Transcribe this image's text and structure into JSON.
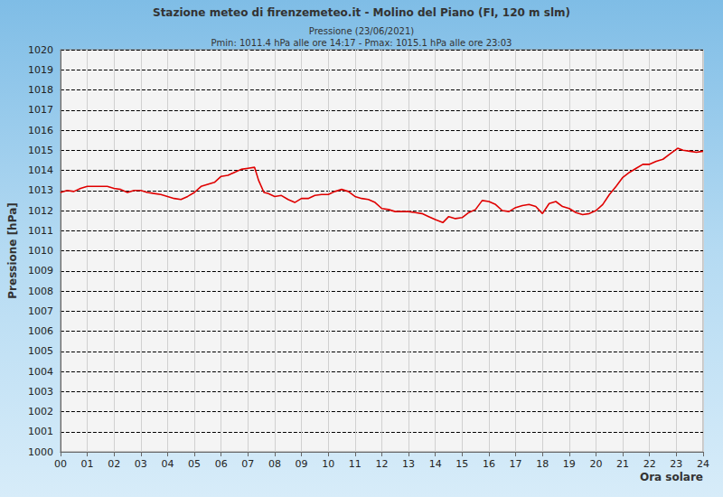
{
  "chart_data": {
    "type": "line",
    "title": "Stazione meteo di firenzemeteo.it - Molino del Piano (FI, 120 m slm)",
    "subtitle": "Pressione (23/06/2021)",
    "annotations": [
      "Pmin: 1011.4 hPa alle ore 14:17 - Pmax: 1015.1 hPa alle ore 23:03"
    ],
    "x_label": "Ora solare",
    "y_label": "Pressione [hPa]",
    "x": [
      0,
      0.25,
      0.5,
      0.75,
      1,
      1.25,
      1.5,
      1.75,
      2,
      2.25,
      2.5,
      2.75,
      3,
      3.25,
      3.5,
      3.75,
      4,
      4.25,
      4.5,
      4.75,
      5,
      5.25,
      5.5,
      5.75,
      6,
      6.25,
      6.5,
      6.75,
      7,
      7.25,
      7.4,
      7.6,
      7.75,
      8,
      8.25,
      8.5,
      8.75,
      9,
      9.25,
      9.5,
      9.75,
      10,
      10.25,
      10.5,
      10.75,
      11,
      11.25,
      11.5,
      11.75,
      12,
      12.25,
      12.5,
      12.75,
      13,
      13.25,
      13.5,
      13.75,
      14,
      14.28,
      14.5,
      14.75,
      15,
      15.25,
      15.5,
      15.75,
      16,
      16.25,
      16.5,
      16.75,
      17,
      17.25,
      17.5,
      17.75,
      18,
      18.25,
      18.5,
      18.75,
      19,
      19.25,
      19.5,
      19.75,
      20,
      20.25,
      20.5,
      20.75,
      21,
      21.25,
      21.5,
      21.75,
      22,
      22.25,
      22.5,
      22.75,
      23.05,
      23.25,
      23.5,
      23.75,
      24
    ],
    "values": [
      1012.9,
      1013.0,
      1012.95,
      1013.1,
      1013.2,
      1013.2,
      1013.2,
      1013.2,
      1013.1,
      1013.05,
      1012.9,
      1013.0,
      1013.0,
      1012.9,
      1012.85,
      1012.8,
      1012.7,
      1012.6,
      1012.55,
      1012.7,
      1012.9,
      1013.2,
      1013.3,
      1013.4,
      1013.7,
      1013.75,
      1013.9,
      1014.05,
      1014.1,
      1014.15,
      1013.5,
      1012.9,
      1012.85,
      1012.7,
      1012.75,
      1012.55,
      1012.4,
      1012.6,
      1012.6,
      1012.75,
      1012.8,
      1012.8,
      1012.95,
      1013.05,
      1012.95,
      1012.7,
      1012.6,
      1012.55,
      1012.4,
      1012.1,
      1012.05,
      1011.95,
      1011.95,
      1011.95,
      1011.9,
      1011.85,
      1011.7,
      1011.55,
      1011.4,
      1011.7,
      1011.6,
      1011.65,
      1011.9,
      1012.05,
      1012.5,
      1012.45,
      1012.3,
      1012.0,
      1011.95,
      1012.15,
      1012.25,
      1012.3,
      1012.2,
      1011.85,
      1012.35,
      1012.45,
      1012.2,
      1012.1,
      1011.9,
      1011.8,
      1011.85,
      1012.0,
      1012.3,
      1012.8,
      1013.2,
      1013.65,
      1013.9,
      1014.1,
      1014.3,
      1014.3,
      1014.45,
      1014.55,
      1014.8,
      1015.1,
      1015.0,
      1014.95,
      1014.9,
      1014.95
    ],
    "color": "#e00000",
    "xlim": [
      0,
      24
    ],
    "xticks": [
      {
        "value": 0,
        "label": "00"
      },
      {
        "value": 1,
        "label": "01"
      },
      {
        "value": 2,
        "label": "02"
      },
      {
        "value": 3,
        "label": "03"
      },
      {
        "value": 4,
        "label": "04"
      },
      {
        "value": 5,
        "label": "05"
      },
      {
        "value": 6,
        "label": "06"
      },
      {
        "value": 7,
        "label": "07"
      },
      {
        "value": 8,
        "label": "08"
      },
      {
        "value": 9,
        "label": "09"
      },
      10,
      11,
      12,
      13,
      14,
      15,
      16,
      17,
      18,
      19,
      20,
      21,
      22,
      23,
      24
    ],
    "ylim": [
      1000,
      1020
    ],
    "yticks": [
      1000,
      1001,
      1002,
      1003,
      1004,
      1005,
      1006,
      1007,
      1008,
      1009,
      1010,
      1011,
      1012,
      1013,
      1014,
      1015,
      1016,
      1017,
      1018,
      1019,
      1020
    ],
    "grid": true
  }
}
